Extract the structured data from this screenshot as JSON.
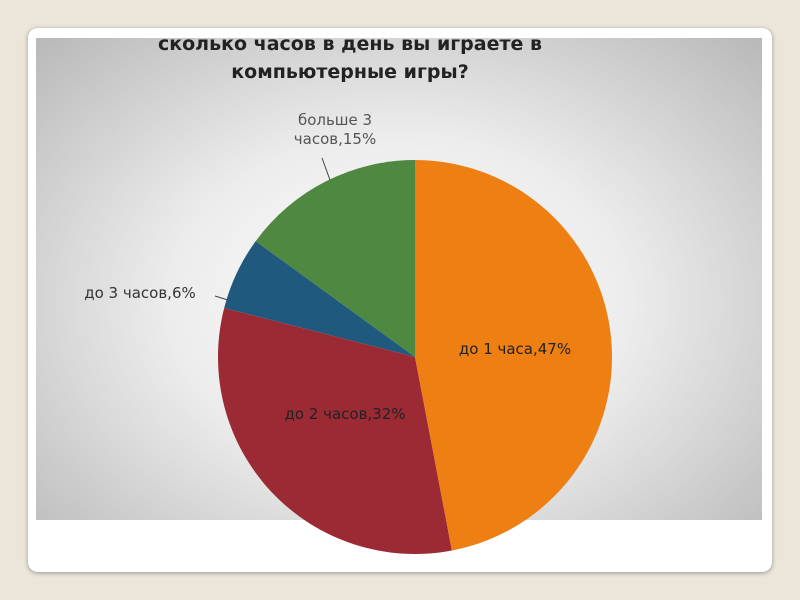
{
  "chart_data": {
    "type": "pie",
    "title": "сколько часов в день вы играете в компьютерные игры?",
    "values": [
      47,
      32,
      6,
      15
    ],
    "value_labels": [
      "до 1 часа,47%",
      "до 2 часов,32%",
      "до 3 часов,6%",
      "больше 3 часов,15%"
    ],
    "colors": [
      "#ee7f12",
      "#9b2a35",
      "#1f5a7e",
      "#4e8841"
    ]
  }
}
